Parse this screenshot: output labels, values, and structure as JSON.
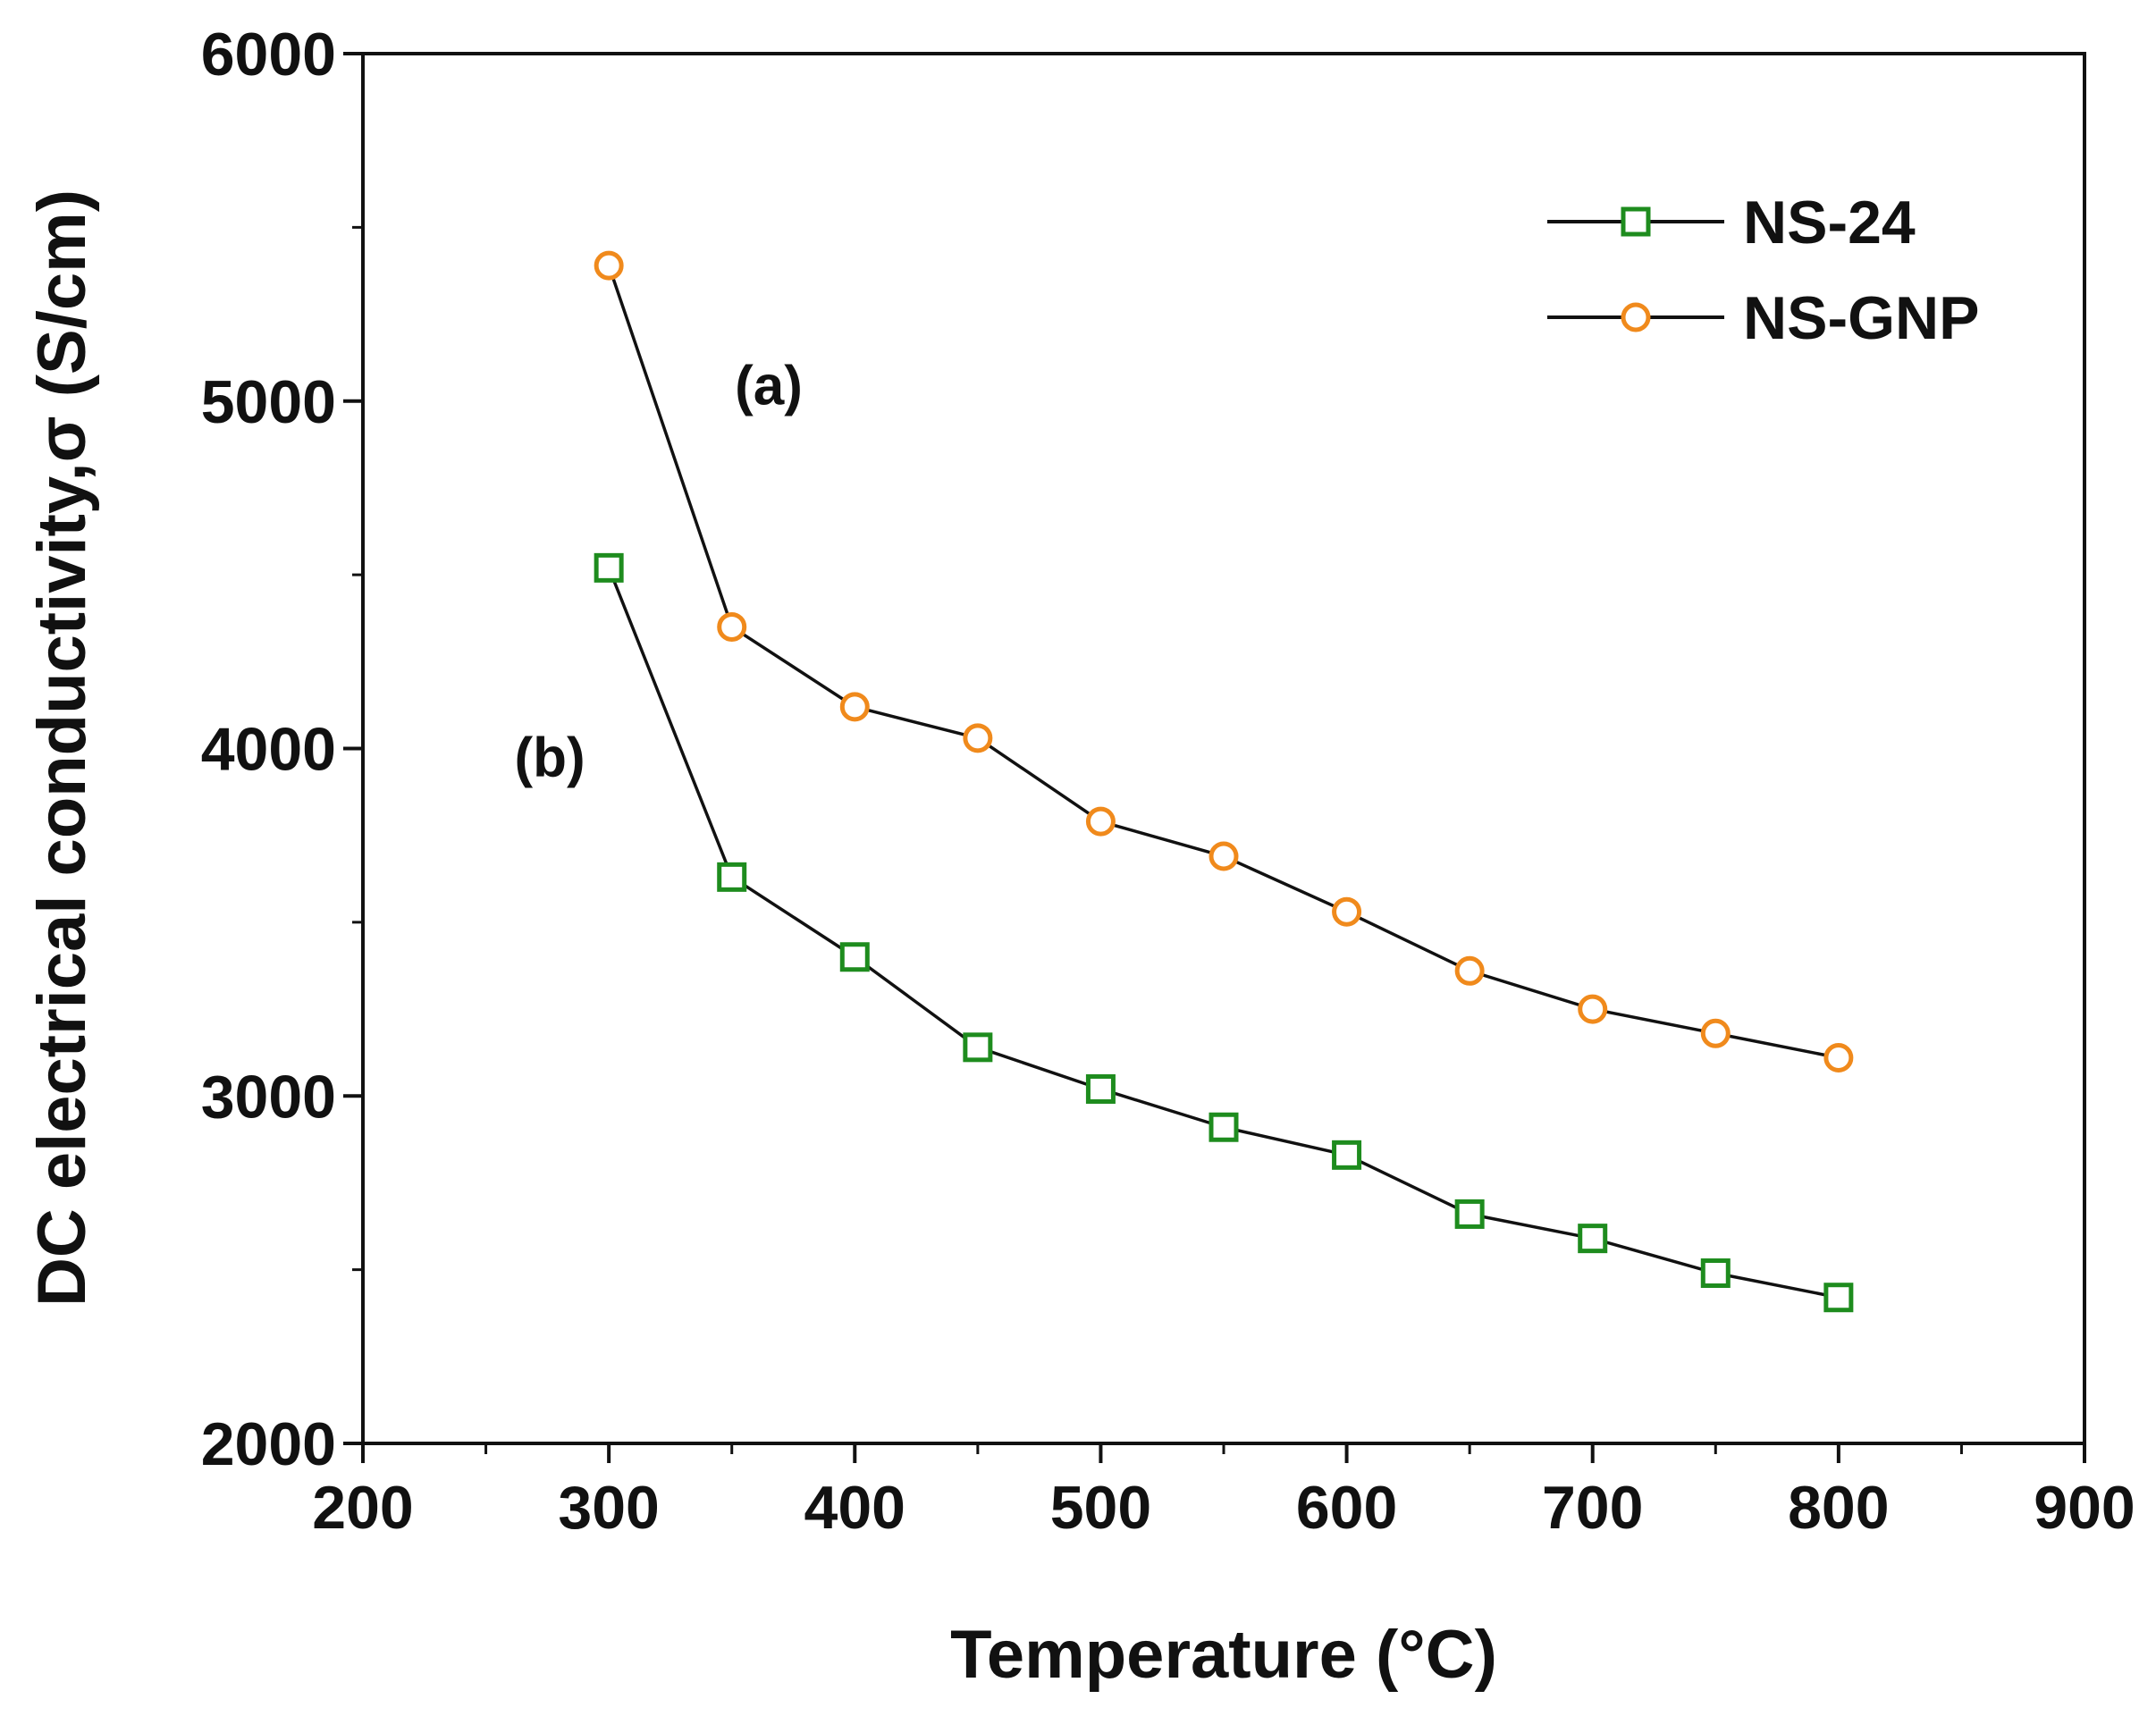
{
  "chart_data": {
    "type": "line",
    "title": "",
    "xlabel": "Temperature (°C)",
    "ylabel": "DC electrical conductivity,σ (S/cm)",
    "xlim": [
      200,
      900
    ],
    "ylim": [
      2000,
      6000
    ],
    "xticks": [
      200,
      300,
      400,
      500,
      600,
      700,
      800,
      900
    ],
    "yticks": [
      2000,
      3000,
      4000,
      5000,
      6000
    ],
    "x_minor_ticks": [
      250,
      350,
      450,
      550,
      650,
      750,
      850
    ],
    "y_minor_ticks": [
      2500,
      3500,
      4500,
      5500
    ],
    "grid": false,
    "legend_position": "top-right",
    "x": [
      300,
      350,
      400,
      450,
      500,
      550,
      600,
      650,
      700,
      750,
      800
    ],
    "series": [
      {
        "name": "NS-24",
        "marker": "square",
        "color": "#1e8c1e",
        "line_color": "#111111",
        "values": [
          4520,
          3630,
          3400,
          3140,
          3020,
          2910,
          2830,
          2660,
          2590,
          2490,
          2420
        ]
      },
      {
        "name": "NS-GNP",
        "marker": "circle",
        "color": "#f08a1c",
        "line_color": "#111111",
        "values": [
          5390,
          4350,
          4120,
          4030,
          3790,
          3690,
          3530,
          3360,
          3250,
          3180,
          3110
        ]
      }
    ],
    "annotations": [
      {
        "text": "(a)",
        "x": 365,
        "y": 4990
      },
      {
        "text": "(b)",
        "x": 276,
        "y": 3920
      }
    ]
  }
}
